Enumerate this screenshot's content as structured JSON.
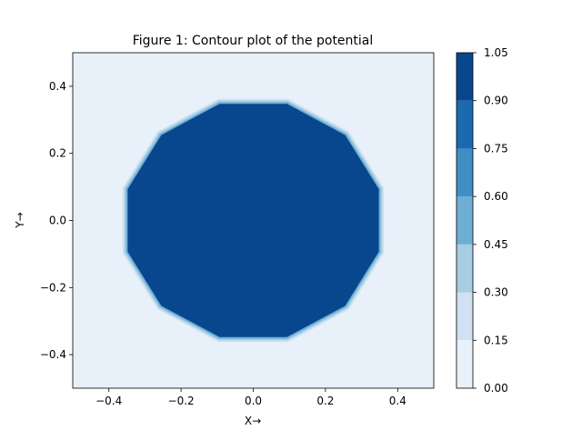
{
  "chart_data": {
    "type": "contour",
    "title": "Figure 1: Contour plot of the potential",
    "xlabel": "X→",
    "ylabel": "Y→",
    "xlim": [
      -0.5,
      0.5
    ],
    "ylim": [
      -0.5,
      0.5
    ],
    "x_ticks": [
      -0.4,
      -0.2,
      0.0,
      0.2,
      0.4
    ],
    "x_tick_labels": [
      "−0.4",
      "−0.2",
      "0.0",
      "0.2",
      "0.4"
    ],
    "y_ticks": [
      -0.4,
      -0.2,
      0.0,
      0.2,
      0.4
    ],
    "y_tick_labels": [
      "−0.4",
      "−0.2",
      "0.0",
      "0.2",
      "0.4"
    ],
    "shape": "dodecagon",
    "inner_value": 1.0,
    "outer_value": 0.0,
    "region_radius": 0.36,
    "edge_levels": [
      {
        "radius": 0.375,
        "level_index": 1
      },
      {
        "radius": 0.37,
        "level_index": 2
      },
      {
        "radius": 0.365,
        "level_index": 3
      },
      {
        "radius": 0.36,
        "level_index": 6
      }
    ],
    "colorbar": {
      "levels": [
        0.0,
        0.15,
        0.3,
        0.45,
        0.6,
        0.75,
        0.9,
        1.05
      ],
      "tick_labels": [
        "0.00",
        "0.15",
        "0.30",
        "0.45",
        "0.60",
        "0.75",
        "0.90",
        "1.05"
      ],
      "colors": [
        "#e8f1fa",
        "#cfe1f2",
        "#a5cde3",
        "#6daed5",
        "#3f8fc4",
        "#1b6aaf",
        "#08478d"
      ]
    },
    "colormap": "Blues",
    "grid": false
  }
}
